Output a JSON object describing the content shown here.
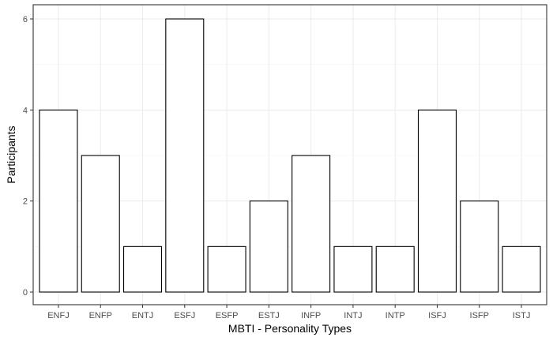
{
  "chart_data": {
    "type": "bar",
    "categories": [
      "ENFJ",
      "ENFP",
      "ENTJ",
      "ESFJ",
      "ESFP",
      "ESTJ",
      "INFP",
      "INTJ",
      "INTP",
      "ISFJ",
      "ISFP",
      "ISTJ"
    ],
    "values": [
      4,
      3,
      1,
      6,
      1,
      2,
      3,
      1,
      1,
      4,
      2,
      1
    ],
    "xlabel": "MBTI - Personality Types",
    "ylabel": "Participants",
    "ylim": [
      0,
      6
    ],
    "yticks": [
      "0",
      "2",
      "4",
      "6"
    ],
    "grid": true,
    "bar_fill": "#ffffff",
    "bar_stroke": "#000000"
  }
}
